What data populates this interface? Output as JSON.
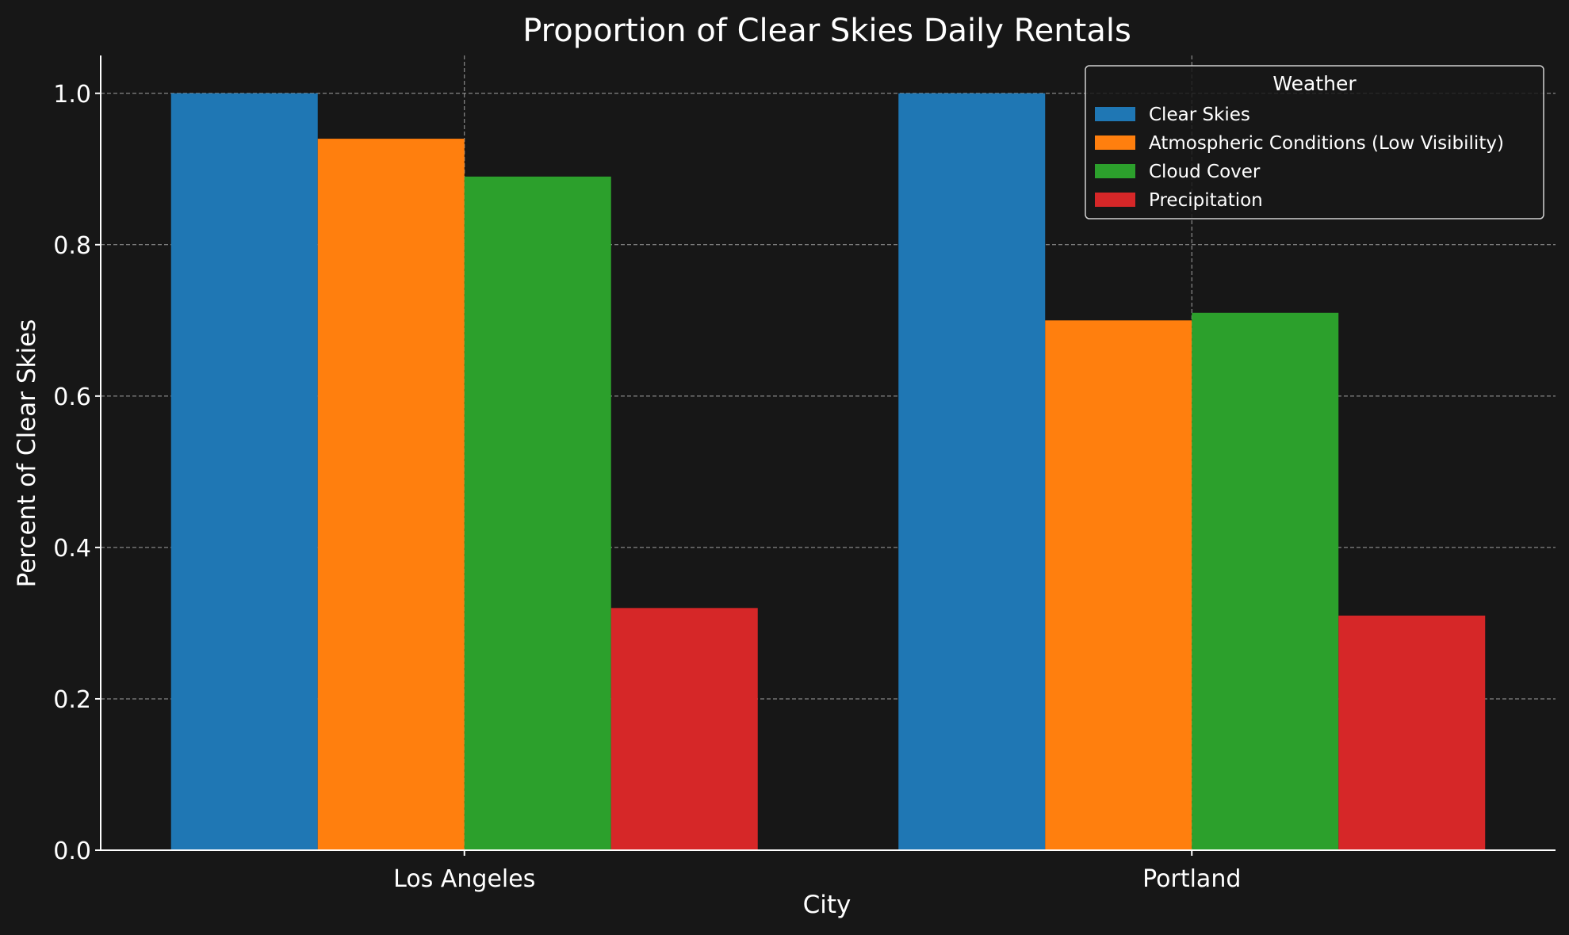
{
  "chart_data": {
    "type": "bar",
    "title": "Proportion of Clear Skies Daily Rentals",
    "xlabel": "City",
    "ylabel": "Percent of Clear Skies",
    "categories": [
      "Los Angeles",
      "Portland"
    ],
    "ylim": [
      0,
      1.05
    ],
    "yticks": [
      0.0,
      0.2,
      0.4,
      0.6,
      0.8,
      1.0
    ],
    "grid": true,
    "legend": {
      "title": "Weather",
      "placement": "top-right"
    },
    "series": [
      {
        "name": "Clear Skies",
        "color": "#1f77b4",
        "values": [
          1.0,
          1.0
        ]
      },
      {
        "name": "Atmospheric Conditions (Low Visibility)",
        "color": "#ff7f0e",
        "values": [
          0.94,
          0.7
        ]
      },
      {
        "name": "Cloud Cover",
        "color": "#2ca02c",
        "values": [
          0.89,
          0.71
        ]
      },
      {
        "name": "Precipitation",
        "color": "#d62728",
        "values": [
          0.32,
          0.31
        ]
      }
    ]
  }
}
